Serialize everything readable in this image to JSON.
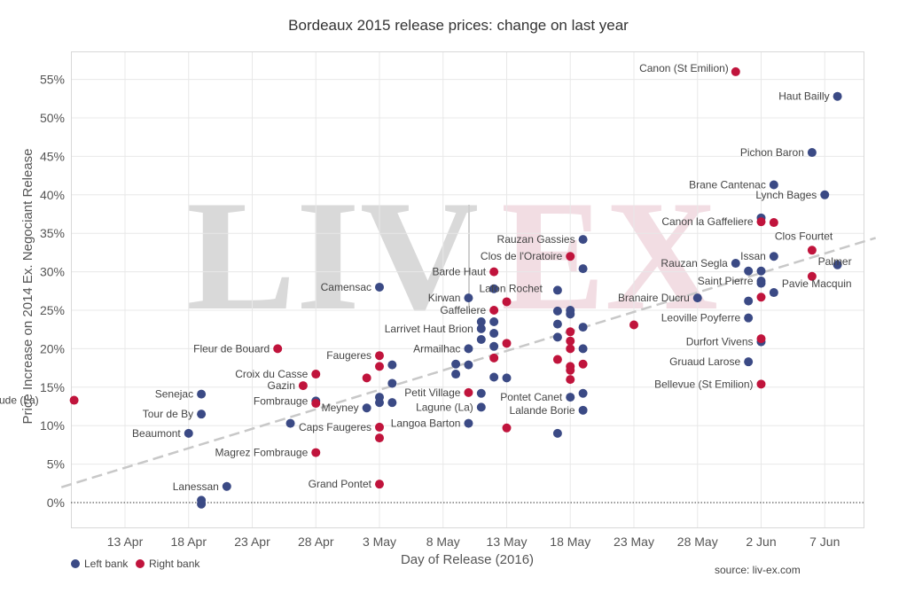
{
  "chart_data": {
    "type": "scatter",
    "title": "Bordeaux 2015 release prices: change on last year",
    "xlabel": "Day of Release (2016)",
    "ylabel": "Price Increase on 2014 Ex. Negociant Release",
    "source": "source: liv-ex.com",
    "watermark": {
      "left": "LIV",
      "right": "EX"
    },
    "x_ticks": [
      "13 Apr",
      "18 Apr",
      "23 Apr",
      "28 Apr",
      "3 May",
      "8 May",
      "13 May",
      "18 May",
      "23 May",
      "28 May",
      "2 Jun",
      "7 Jun"
    ],
    "y_ticks": [
      "0%",
      "5%",
      "10%",
      "15%",
      "20%",
      "25%",
      "30%",
      "35%",
      "40%",
      "45%",
      "50%",
      "55%"
    ],
    "ylim": [
      -3,
      57
    ],
    "grid": true,
    "legend_position": "bottom-left",
    "colors": {
      "Left bank": "#3b4a85",
      "Right bank": "#c0143c",
      "trend": "#c8c8c8",
      "grid": "#e8e8e8"
    },
    "series": [
      {
        "name": "Left bank",
        "color": "#3b4a85",
        "points": [
          {
            "d": "2016-04-19",
            "y": 14.1,
            "label": "Senejac"
          },
          {
            "d": "2016-04-19",
            "y": 11.5,
            "label": "Tour de By"
          },
          {
            "d": "2016-04-18",
            "y": 9.0,
            "label": "Beaumont"
          },
          {
            "d": "2016-04-21",
            "y": 2.1,
            "label": "Lanessan"
          },
          {
            "d": "2016-04-19",
            "y": 0.3,
            "label": ""
          },
          {
            "d": "2016-04-19",
            "y": -0.2,
            "label": ""
          },
          {
            "d": "2016-04-26",
            "y": 10.3,
            "label": ""
          },
          {
            "d": "2016-04-28",
            "y": 13.2,
            "label": "Fombrauge"
          },
          {
            "d": "2016-05-02",
            "y": 12.3,
            "label": "Meyney"
          },
          {
            "d": "2016-05-03",
            "y": 28.0,
            "label": "Camensac"
          },
          {
            "d": "2016-05-03",
            "y": 13.7,
            "label": ""
          },
          {
            "d": "2016-05-03",
            "y": 13.0,
            "label": ""
          },
          {
            "d": "2016-05-04",
            "y": 17.9,
            "label": ""
          },
          {
            "d": "2016-05-04",
            "y": 15.5,
            "label": ""
          },
          {
            "d": "2016-05-04",
            "y": 13.0,
            "label": ""
          },
          {
            "d": "2016-05-09",
            "y": 18.0,
            "label": ""
          },
          {
            "d": "2016-05-09",
            "y": 16.7,
            "label": ""
          },
          {
            "d": "2016-05-10",
            "y": 26.6,
            "label": "Kirwan"
          },
          {
            "d": "2016-05-10",
            "y": 20.0,
            "label": "Armailhac"
          },
          {
            "d": "2016-05-10",
            "y": 17.9,
            "label": ""
          },
          {
            "d": "2016-05-10",
            "y": 10.3,
            "label": "Langoa Barton"
          },
          {
            "d": "2016-05-11",
            "y": 23.5,
            "label": ""
          },
          {
            "d": "2016-05-11",
            "y": 22.6,
            "label": "Larrivet Haut Brion"
          },
          {
            "d": "2016-05-11",
            "y": 21.2,
            "label": ""
          },
          {
            "d": "2016-05-11",
            "y": 14.2,
            "label": ""
          },
          {
            "d": "2016-05-11",
            "y": 12.4,
            "label": "Lagune (La)"
          },
          {
            "d": "2016-05-12",
            "y": 27.8,
            "label": ""
          },
          {
            "d": "2016-05-12",
            "y": 23.5,
            "label": ""
          },
          {
            "d": "2016-05-12",
            "y": 22.0,
            "label": ""
          },
          {
            "d": "2016-05-12",
            "y": 20.3,
            "label": ""
          },
          {
            "d": "2016-05-12",
            "y": 16.3,
            "label": ""
          },
          {
            "d": "2016-05-13",
            "y": 16.2,
            "label": ""
          },
          {
            "d": "2016-05-17",
            "y": 27.6,
            "label": "Lafon Rochet"
          },
          {
            "d": "2016-05-17",
            "y": 24.9,
            "label": ""
          },
          {
            "d": "2016-05-17",
            "y": 23.2,
            "label": ""
          },
          {
            "d": "2016-05-17",
            "y": 21.5,
            "label": ""
          },
          {
            "d": "2016-05-17",
            "y": 9.0,
            "label": ""
          },
          {
            "d": "2016-05-18",
            "y": 25.0,
            "label": ""
          },
          {
            "d": "2016-05-18",
            "y": 24.5,
            "label": ""
          },
          {
            "d": "2016-05-18",
            "y": 13.7,
            "label": "Pontet Canet"
          },
          {
            "d": "2016-05-19",
            "y": 34.2,
            "label": "Rauzan Gassies"
          },
          {
            "d": "2016-05-19",
            "y": 30.4,
            "label": ""
          },
          {
            "d": "2016-05-19",
            "y": 22.8,
            "label": ""
          },
          {
            "d": "2016-05-19",
            "y": 20.0,
            "label": ""
          },
          {
            "d": "2016-05-19",
            "y": 14.2,
            "label": ""
          },
          {
            "d": "2016-05-19",
            "y": 12.0,
            "label": "Lalande Borie"
          },
          {
            "d": "2016-05-28",
            "y": 26.6,
            "label": "Branaire Ducru"
          },
          {
            "d": "2016-05-31",
            "y": 31.1,
            "label": "Rauzan Segla"
          },
          {
            "d": "2016-06-01",
            "y": 30.1,
            "label": ""
          },
          {
            "d": "2016-06-01",
            "y": 26.2,
            "label": ""
          },
          {
            "d": "2016-06-01",
            "y": 24.0,
            "label": "Leoville Poyferre"
          },
          {
            "d": "2016-06-01",
            "y": 18.3,
            "label": "Gruaud Larose"
          },
          {
            "d": "2016-06-02",
            "y": 37.0,
            "label": ""
          },
          {
            "d": "2016-06-02",
            "y": 30.1,
            "label": ""
          },
          {
            "d": "2016-06-02",
            "y": 28.8,
            "label": "Saint Pierre"
          },
          {
            "d": "2016-06-02",
            "y": 28.5,
            "label": ""
          },
          {
            "d": "2016-06-02",
            "y": 20.9,
            "label": "Durfort Vivens"
          },
          {
            "d": "2016-06-03",
            "y": 41.3,
            "label": "Brane Cantenac"
          },
          {
            "d": "2016-06-03",
            "y": 32.0,
            "label": "Issan"
          },
          {
            "d": "2016-06-03",
            "y": 27.3,
            "label": ""
          },
          {
            "d": "2016-06-06",
            "y": 45.5,
            "label": "Pichon Baron"
          },
          {
            "d": "2016-06-07",
            "y": 40.0,
            "label": "Lynch Bages"
          },
          {
            "d": "2016-06-08",
            "y": 52.8,
            "label": "Haut Bailly"
          },
          {
            "d": "2016-06-08",
            "y": 30.9,
            "label": "Palmer"
          }
        ]
      },
      {
        "name": "Right bank",
        "color": "#c0143c",
        "points": [
          {
            "d": "2016-04-09",
            "y": 13.3,
            "label": "Couspaude (La)"
          },
          {
            "d": "2016-04-25",
            "y": 20.0,
            "label": "Fleur de Bouard"
          },
          {
            "d": "2016-04-27",
            "y": 15.2,
            "label": "Gazin"
          },
          {
            "d": "2016-04-28",
            "y": 16.7,
            "label": "Croix du Casse"
          },
          {
            "d": "2016-04-28",
            "y": 12.9,
            "label": ""
          },
          {
            "d": "2016-04-28",
            "y": 6.5,
            "label": "Magrez Fombrauge"
          },
          {
            "d": "2016-05-02",
            "y": 16.2,
            "label": ""
          },
          {
            "d": "2016-05-03",
            "y": 19.1,
            "label": "Faugeres"
          },
          {
            "d": "2016-05-03",
            "y": 17.7,
            "label": ""
          },
          {
            "d": "2016-05-03",
            "y": 9.8,
            "label": "Caps Faugeres"
          },
          {
            "d": "2016-05-03",
            "y": 8.4,
            "label": ""
          },
          {
            "d": "2016-05-03",
            "y": 2.4,
            "label": "Grand Pontet"
          },
          {
            "d": "2016-05-10",
            "y": 14.3,
            "label": "Petit Village"
          },
          {
            "d": "2016-05-12",
            "y": 30.0,
            "label": "Barde Haut"
          },
          {
            "d": "2016-05-12",
            "y": 25.0,
            "label": "Gaffeliere"
          },
          {
            "d": "2016-05-12",
            "y": 18.8,
            "label": ""
          },
          {
            "d": "2016-05-13",
            "y": 26.1,
            "label": ""
          },
          {
            "d": "2016-05-13",
            "y": 20.7,
            "label": ""
          },
          {
            "d": "2016-05-13",
            "y": 9.7,
            "label": ""
          },
          {
            "d": "2016-05-17",
            "y": 18.6,
            "label": ""
          },
          {
            "d": "2016-05-18",
            "y": 32.0,
            "label": "Clos de l'Oratoire"
          },
          {
            "d": "2016-05-18",
            "y": 22.2,
            "label": ""
          },
          {
            "d": "2016-05-18",
            "y": 21.0,
            "label": ""
          },
          {
            "d": "2016-05-18",
            "y": 20.0,
            "label": ""
          },
          {
            "d": "2016-05-18",
            "y": 17.7,
            "label": ""
          },
          {
            "d": "2016-05-18",
            "y": 17.2,
            "label": ""
          },
          {
            "d": "2016-05-18",
            "y": 16.0,
            "label": ""
          },
          {
            "d": "2016-05-19",
            "y": 18.0,
            "label": ""
          },
          {
            "d": "2016-05-23",
            "y": 23.1,
            "label": ""
          },
          {
            "d": "2016-05-31",
            "y": 56.0,
            "label": "Canon (St Emilion)"
          },
          {
            "d": "2016-06-02",
            "y": 36.5,
            "label": "Canon la Gaffeliere"
          },
          {
            "d": "2016-06-02",
            "y": 26.7,
            "label": ""
          },
          {
            "d": "2016-06-02",
            "y": 21.3,
            "label": ""
          },
          {
            "d": "2016-06-02",
            "y": 15.4,
            "label": "Bellevue (St Emilion)"
          },
          {
            "d": "2016-06-03",
            "y": 36.4,
            "label": ""
          },
          {
            "d": "2016-06-06",
            "y": 32.8,
            "label": "Clos Fourtet"
          },
          {
            "d": "2016-06-06",
            "y": 29.4,
            "label": "Pavie Macquin"
          }
        ]
      }
    ],
    "trend": [
      {
        "d": "2016-04-08",
        "y": 2.0
      },
      {
        "d": "2016-06-11",
        "y": 34.4
      }
    ]
  }
}
